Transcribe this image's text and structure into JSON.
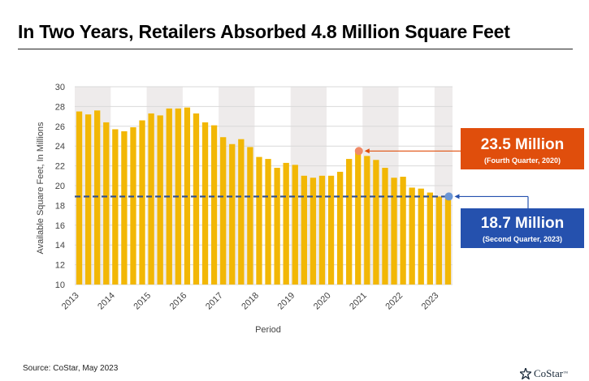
{
  "title": "In Two Years, Retailers Absorbed 4.8 Million Square Feet",
  "source": "Source: CoStar, May 2023",
  "logo_text": "CoStar",
  "colors": {
    "bar": "#F2B705",
    "shade": "#EEEBEB",
    "grid": "#D9D9D9",
    "dashed_line": "#2E4E8F",
    "callout_peak": "#E04E0C",
    "callout_current": "#2551AE",
    "peak_marker": "#F08A67",
    "current_marker": "#6A95D4"
  },
  "chart_data": {
    "type": "bar",
    "xlabel": "Period",
    "ylabel": "Available Square Feet, In Millions",
    "ylim": [
      10,
      30
    ],
    "yticks": [
      10,
      12,
      14,
      16,
      18,
      20,
      22,
      24,
      26,
      28,
      30
    ],
    "xticks": [
      "2013",
      "2014",
      "2015",
      "2016",
      "2017",
      "2018",
      "2019",
      "2020",
      "2021",
      "2022",
      "2023"
    ],
    "grid": true,
    "start_year": 2013,
    "values": [
      27.5,
      27.2,
      27.6,
      26.4,
      25.7,
      25.5,
      25.9,
      26.6,
      27.3,
      27.1,
      27.8,
      27.8,
      27.9,
      27.3,
      26.4,
      26.1,
      24.9,
      24.2,
      24.7,
      23.9,
      22.9,
      22.7,
      21.8,
      22.3,
      22.1,
      21.0,
      20.8,
      21.0,
      21.0,
      21.4,
      22.7,
      23.5,
      23.0,
      22.6,
      21.8,
      20.8,
      20.9,
      19.8,
      19.7,
      19.3,
      18.9,
      18.7
    ],
    "shaded_years": [
      "2013",
      "2015",
      "2017",
      "2019",
      "2021",
      "2023"
    ],
    "reference_line": 18.9,
    "annotations": [
      {
        "id": "peak",
        "index": 31,
        "value_label": "23.5 Million",
        "sub_label": "(Fourth Quarter, 2020)"
      },
      {
        "id": "current",
        "index": 41,
        "value_label": "18.7 Million",
        "sub_label": "(Second Quarter, 2023)"
      }
    ]
  }
}
